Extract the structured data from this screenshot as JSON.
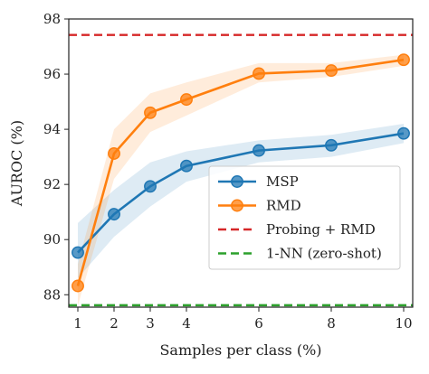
{
  "chart_data": {
    "type": "line",
    "title": "",
    "xlabel": "Samples per class (%)",
    "ylabel": "AUROC (%)",
    "xlim": [
      0.75,
      10.25
    ],
    "ylim": [
      87.55,
      98
    ],
    "xticks": [
      1,
      2,
      3,
      4,
      6,
      8,
      10
    ],
    "xtick_labels": [
      "1",
      "2",
      "3",
      "4",
      "6",
      "8",
      "10"
    ],
    "yticks": [
      88,
      90,
      92,
      94,
      96,
      98
    ],
    "ytick_labels": [
      "88",
      "90",
      "92",
      "94",
      "96",
      "98"
    ],
    "grid": false,
    "legend_position": "lower-right",
    "x": [
      1,
      2,
      3,
      4,
      6,
      8,
      10
    ],
    "series": [
      {
        "name": "MSP",
        "kind": "line-markers",
        "color": "#1f77b4",
        "values": [
          89.53,
          90.92,
          91.93,
          92.67,
          93.23,
          93.42,
          93.85
        ],
        "band_low": [
          88.6,
          90.1,
          91.2,
          92.1,
          92.8,
          93.0,
          93.5
        ],
        "band_high": [
          90.6,
          91.8,
          92.8,
          93.2,
          93.6,
          93.8,
          94.2
        ]
      },
      {
        "name": "RMD",
        "kind": "line-markers",
        "color": "#ff7f0e",
        "values": [
          88.32,
          93.12,
          94.6,
          95.08,
          96.02,
          96.13,
          96.52
        ],
        "band_low": [
          87.6,
          92.2,
          93.9,
          94.5,
          95.7,
          95.9,
          96.3
        ],
        "band_high": [
          89.1,
          94.0,
          95.3,
          95.7,
          96.4,
          96.4,
          96.7
        ]
      },
      {
        "name": "Probing + RMD",
        "kind": "hline",
        "color": "#d62728",
        "value": 97.42
      },
      {
        "name": "1-NN (zero-shot)",
        "kind": "hline",
        "color": "#2ca02c",
        "value": 87.62
      }
    ]
  }
}
